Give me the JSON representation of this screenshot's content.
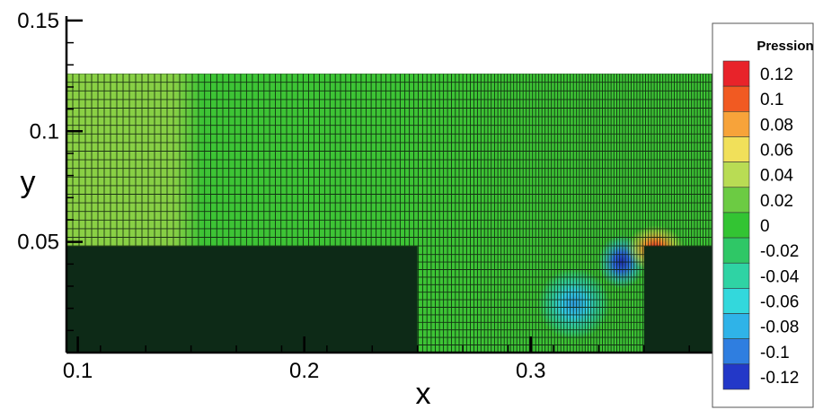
{
  "chart_data": {
    "type": "heatmap",
    "title": "",
    "xlabel": "x",
    "ylabel": "y",
    "xlim": [
      0.095,
      0.385
    ],
    "ylim": [
      0.0,
      0.152
    ],
    "x_ticks": [
      {
        "value": 0.1,
        "label": "0.1"
      },
      {
        "value": 0.2,
        "label": "0.2"
      },
      {
        "value": 0.3,
        "label": "0.3"
      }
    ],
    "y_ticks": [
      {
        "value": 0.05,
        "label": "0.05"
      },
      {
        "value": 0.1,
        "label": "0.1"
      },
      {
        "value": 0.15,
        "label": "0.15"
      }
    ],
    "domain": {
      "x": [
        0.095,
        0.385
      ],
      "y": [
        0.0,
        0.126
      ]
    },
    "solids": [
      {
        "name": "left-block",
        "x": [
          0.095,
          0.25
        ],
        "y": [
          0.0,
          0.048
        ]
      },
      {
        "name": "right-block",
        "x": [
          0.35,
          0.385
        ],
        "y": [
          0.0,
          0.048
        ]
      }
    ],
    "field_regions": [
      {
        "name": "inlet-region",
        "x": [
          0.095,
          0.147
        ],
        "y": [
          0.0,
          0.126
        ],
        "value": 0.04
      }
    ],
    "features": [
      {
        "name": "low-pressure-vortex-a",
        "x": 0.34,
        "y": 0.041,
        "value": -0.12
      },
      {
        "name": "low-pressure-vortex-b",
        "x": 0.319,
        "y": 0.022,
        "value": -0.08
      },
      {
        "name": "high-pressure-spot",
        "x": 0.355,
        "y": 0.047,
        "value": 0.12
      }
    ],
    "legend": {
      "title": "Pression",
      "placement": "right",
      "levels": [
        0.12,
        0.1,
        0.08,
        0.06,
        0.04,
        0.02,
        0,
        -0.02,
        -0.04,
        -0.06,
        -0.08,
        -0.1,
        -0.12
      ],
      "labels": [
        "0.12",
        "0.1",
        "0.08",
        "0.06",
        "0.04",
        "0.02",
        "0",
        "-0.02",
        "-0.04",
        "-0.06",
        "-0.08",
        "-0.1",
        "-0.12"
      ],
      "colors": [
        "#e8232a",
        "#f15a22",
        "#f7a33a",
        "#f1e05a",
        "#b9dc54",
        "#6ccb43",
        "#33c433",
        "#2fc766",
        "#2fd3a4",
        "#33d8dc",
        "#2fb3e8",
        "#2f7ee0",
        "#2338c8"
      ]
    },
    "colors": {
      "background_field": "#3dc435",
      "inlet_field": "#8bd045",
      "solid": "#0d2a17",
      "mesh": "#0a1a0c"
    }
  }
}
